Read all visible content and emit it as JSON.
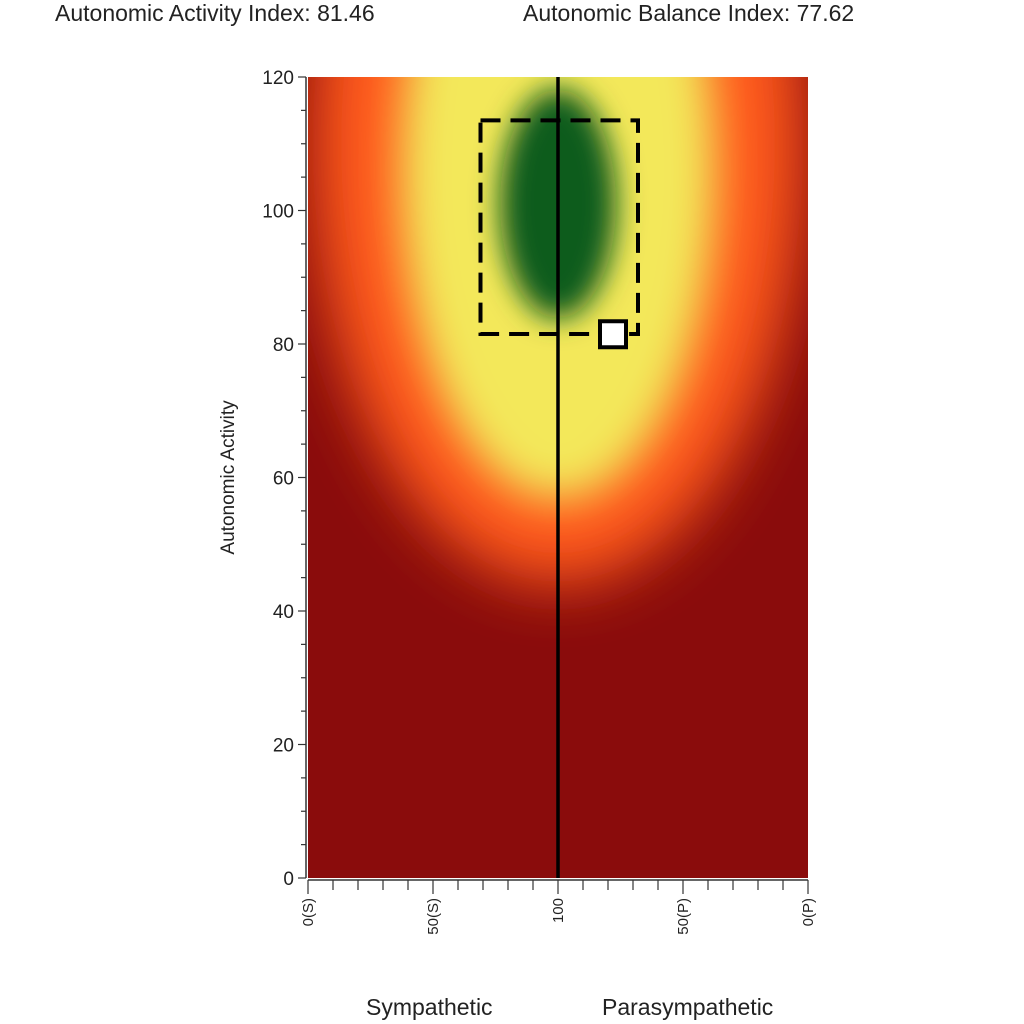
{
  "header": {
    "activity_index_text": "Autonomic Activity Index: 81.46",
    "balance_index_text": "Autonomic Balance Index: 77.62"
  },
  "footer": {
    "sympathetic_label": "Sympathetic",
    "parasympathetic_label": "Parasympathetic"
  },
  "chart_data": {
    "type": "heatmap",
    "ylabel": "Autonomic Activity",
    "ylim": [
      0,
      120
    ],
    "y_ticks": [
      "0",
      "20",
      "40",
      "60",
      "80",
      "100",
      "120"
    ],
    "x_tick_labels": [
      "0(S)",
      "50(S)",
      "100",
      "50(P)",
      "0(P)"
    ],
    "x_positions": [
      0,
      50,
      100,
      150,
      200
    ],
    "xlim": [
      0,
      200
    ],
    "reference_line_x": 100,
    "target_zone": {
      "x": [
        69,
        132
      ],
      "y": [
        81.5,
        113.5
      ]
    },
    "marker": {
      "x": 122,
      "y": 81.46
    },
    "colors": {
      "optimal": "#0a5b1a",
      "good": "#f3e85a",
      "fair": "#ff5a1c",
      "poor": "#8a0c0c"
    }
  }
}
